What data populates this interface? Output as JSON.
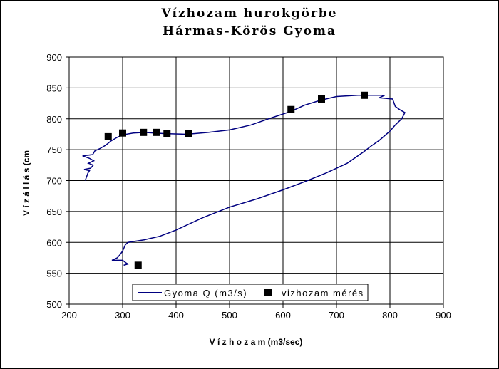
{
  "chart_data": {
    "type": "line",
    "title": "Vízhozam hurokgörbe",
    "subtitle": "Hármas-Körös Gyoma",
    "xlabel": "V í z h o z a m   (m3/sec)",
    "ylabel": "V í z á l l á s  (cm",
    "xlim": [
      200,
      900
    ],
    "ylim": [
      500,
      900
    ],
    "xticks": [
      200,
      300,
      400,
      500,
      600,
      700,
      800,
      900
    ],
    "yticks": [
      500,
      550,
      600,
      650,
      700,
      750,
      800,
      850,
      900
    ],
    "grid": true,
    "legend_position": "bottom-center-inside",
    "series": [
      {
        "name": "Gyoma Q (m3/s)",
        "kind": "line",
        "color": "#000080",
        "points": [
          [
            230,
            700
          ],
          [
            235,
            712
          ],
          [
            238,
            716
          ],
          [
            228,
            718
          ],
          [
            240,
            720
          ],
          [
            245,
            725
          ],
          [
            236,
            728
          ],
          [
            246,
            732
          ],
          [
            238,
            736
          ],
          [
            225,
            740
          ],
          [
            244,
            742
          ],
          [
            248,
            748
          ],
          [
            258,
            752
          ],
          [
            268,
            757
          ],
          [
            278,
            764
          ],
          [
            290,
            770
          ],
          [
            300,
            774
          ],
          [
            320,
            777
          ],
          [
            340,
            778
          ],
          [
            380,
            776
          ],
          [
            420,
            775
          ],
          [
            460,
            778
          ],
          [
            500,
            782
          ],
          [
            540,
            790
          ],
          [
            580,
            802
          ],
          [
            615,
            812
          ],
          [
            640,
            822
          ],
          [
            670,
            830
          ],
          [
            700,
            836
          ],
          [
            740,
            838
          ],
          [
            790,
            838
          ],
          [
            780,
            834
          ],
          [
            805,
            832
          ],
          [
            810,
            820
          ],
          [
            818,
            815
          ],
          [
            828,
            810
          ],
          [
            822,
            800
          ],
          [
            810,
            790
          ],
          [
            800,
            780
          ],
          [
            792,
            774
          ],
          [
            780,
            765
          ],
          [
            765,
            756
          ],
          [
            750,
            746
          ],
          [
            720,
            728
          ],
          [
            700,
            720
          ],
          [
            680,
            712
          ],
          [
            640,
            698
          ],
          [
            600,
            685
          ],
          [
            550,
            670
          ],
          [
            500,
            657
          ],
          [
            450,
            640
          ],
          [
            400,
            620
          ],
          [
            370,
            610
          ],
          [
            340,
            604
          ],
          [
            310,
            600
          ],
          [
            305,
            596
          ],
          [
            300,
            586
          ],
          [
            295,
            580
          ],
          [
            290,
            575
          ],
          [
            280,
            571
          ],
          [
            300,
            571
          ],
          [
            306,
            567
          ],
          [
            310,
            565
          ],
          [
            302,
            563
          ]
        ]
      },
      {
        "name": "vizhozam mérés",
        "kind": "marker",
        "color": "#000000",
        "points": [
          [
            273,
            771
          ],
          [
            300,
            777
          ],
          [
            339,
            778
          ],
          [
            363,
            778
          ],
          [
            383,
            776
          ],
          [
            423,
            776
          ],
          [
            615,
            815
          ],
          [
            672,
            832
          ],
          [
            752,
            838
          ],
          [
            329,
            563
          ]
        ]
      }
    ]
  }
}
